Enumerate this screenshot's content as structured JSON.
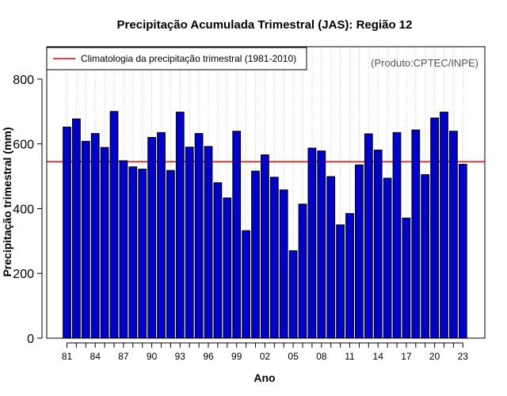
{
  "chart_data": {
    "type": "bar",
    "title": "Precipitação Acumulada Trimestral (JAS): Região 12",
    "xlabel": "Ano",
    "ylabel": "Precipitação trimestral (mm)",
    "ylim": [
      0,
      900
    ],
    "yticks": [
      0,
      200,
      400,
      600,
      800
    ],
    "grid": "vertical dotted",
    "categories": [
      "81",
      "82",
      "83",
      "84",
      "85",
      "86",
      "87",
      "88",
      "89",
      "90",
      "91",
      "92",
      "93",
      "94",
      "95",
      "96",
      "97",
      "98",
      "99",
      "00",
      "01",
      "02",
      "03",
      "04",
      "05",
      "06",
      "07",
      "08",
      "09",
      "10",
      "11",
      "12",
      "13",
      "14",
      "15",
      "16",
      "17",
      "18",
      "19",
      "20",
      "21",
      "22",
      "23"
    ],
    "xtick_labels": [
      "81",
      "84",
      "87",
      "90",
      "93",
      "96",
      "99",
      "02",
      "05",
      "08",
      "11",
      "14",
      "17",
      "20",
      "23"
    ],
    "values": [
      652,
      677,
      608,
      632,
      589,
      700,
      548,
      529,
      522,
      620,
      635,
      518,
      698,
      590,
      632,
      592,
      480,
      433,
      639,
      332,
      516,
      566,
      497,
      458,
      270,
      414,
      587,
      578,
      499,
      350,
      385,
      535,
      631,
      581,
      494,
      635,
      371,
      643,
      505,
      680,
      698,
      639,
      537
    ],
    "bar_color": "#0000cc",
    "climatology": {
      "value": 545,
      "label": "Climatologia da precipitação trimestral (1981-2010)",
      "color": "#ff0000"
    },
    "legend_position": "top-left",
    "credit": "(Produto:CPTEC/INPE)"
  }
}
